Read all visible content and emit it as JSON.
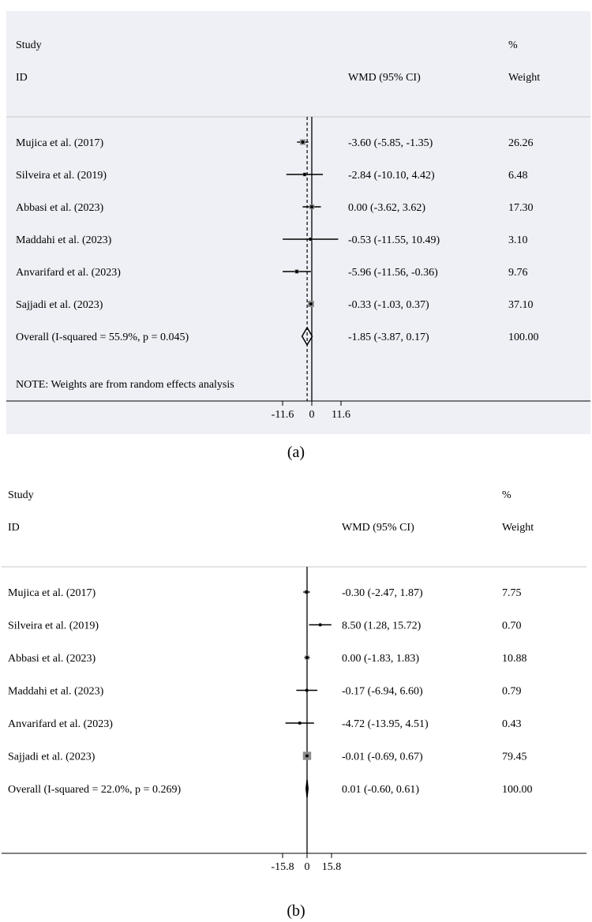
{
  "chart_data": [
    {
      "type": "forest",
      "panel": "a",
      "caption": "(a)",
      "header": {
        "study": "Study",
        "id": "ID",
        "effect": "WMD (95% CI)",
        "pct": "%",
        "weight": "Weight"
      },
      "studies": [
        {
          "label": "Mujica et al. (2017)",
          "est": -3.6,
          "lo": -5.85,
          "hi": -1.35,
          "ci_text": "-3.60 (-5.85, -1.35)",
          "weight": 26.26,
          "weight_text": "26.26"
        },
        {
          "label": "Silveira et al. (2019)",
          "est": -2.84,
          "lo": -10.1,
          "hi": 4.42,
          "ci_text": "-2.84 (-10.10, 4.42)",
          "weight": 6.48,
          "weight_text": "6.48"
        },
        {
          "label": "Abbasi et al. (2023)",
          "est": 0.0,
          "lo": -3.62,
          "hi": 3.62,
          "ci_text": "0.00 (-3.62, 3.62)",
          "weight": 17.3,
          "weight_text": "17.30"
        },
        {
          "label": "Maddahi et al.  (2023)",
          "est": -0.53,
          "lo": -11.55,
          "hi": 10.49,
          "ci_text": "-0.53 (-11.55, 10.49)",
          "weight": 3.1,
          "weight_text": "3.10"
        },
        {
          "label": "Anvarifard et al. (2023)",
          "est": -5.96,
          "lo": -11.56,
          "hi": -0.36,
          "ci_text": "-5.96 (-11.56, -0.36)",
          "weight": 9.76,
          "weight_text": "9.76"
        },
        {
          "label": "Sajjadi et al. (2023)",
          "est": -0.33,
          "lo": -1.03,
          "hi": 0.37,
          "ci_text": "-0.33 (-1.03, 0.37)",
          "weight": 37.1,
          "weight_text": "37.10"
        }
      ],
      "overall": {
        "label": "Overall  (I-squared = 55.9%, p = 0.045)",
        "est": -1.85,
        "lo": -3.87,
        "hi": 0.17,
        "ci_text": "-1.85 (-3.87, 0.17)",
        "weight_text": "100.00"
      },
      "note": "NOTE: Weights are from random effects analysis",
      "xticks": [
        -11.6,
        0,
        11.6
      ],
      "xtick_labels": [
        "-11.6",
        "0",
        "11.6"
      ],
      "xlim": [
        -11.6,
        11.6
      ]
    },
    {
      "type": "forest",
      "panel": "b",
      "caption": "(b)",
      "header": {
        "study": "Study",
        "id": "ID",
        "effect": "WMD (95% CI)",
        "pct": "%",
        "weight": "Weight"
      },
      "studies": [
        {
          "label": "Mujica et al. (2017)",
          "est": -0.3,
          "lo": -2.47,
          "hi": 1.87,
          "ci_text": "-0.30 (-2.47, 1.87)",
          "weight": 7.75,
          "weight_text": "7.75"
        },
        {
          "label": "Silveira et al. (2019)",
          "est": 8.5,
          "lo": 1.28,
          "hi": 15.72,
          "ci_text": "8.50 (1.28, 15.72)",
          "weight": 0.7,
          "weight_text": "0.70"
        },
        {
          "label": "Abbasi et al. (2023)",
          "est": 0.0,
          "lo": -1.83,
          "hi": 1.83,
          "ci_text": "0.00 (-1.83, 1.83)",
          "weight": 10.88,
          "weight_text": "10.88"
        },
        {
          "label": "Maddahi et al.  (2023)",
          "est": -0.17,
          "lo": -6.94,
          "hi": 6.6,
          "ci_text": "-0.17 (-6.94, 6.60)",
          "weight": 0.79,
          "weight_text": "0.79"
        },
        {
          "label": "Anvarifard et al. (2023)",
          "est": -4.72,
          "lo": -13.95,
          "hi": 4.51,
          "ci_text": "-4.72 (-13.95, 4.51)",
          "weight": 0.43,
          "weight_text": "0.43"
        },
        {
          "label": "Sajjadi et al. (2023)",
          "est": -0.01,
          "lo": -0.69,
          "hi": 0.67,
          "ci_text": "-0.01 (-0.69, 0.67)",
          "weight": 79.45,
          "weight_text": "79.45"
        }
      ],
      "overall": {
        "label": "Overall  (I-squared = 22.0%, p = 0.269)",
        "est": 0.01,
        "lo": -0.6,
        "hi": 0.61,
        "ci_text": "0.01 (-0.60, 0.61)",
        "weight_text": "100.00"
      },
      "xticks": [
        -15.8,
        0,
        15.8
      ],
      "xtick_labels": [
        "-15.8",
        "0",
        "15.8"
      ],
      "xlim": [
        -15.8,
        15.8
      ]
    }
  ]
}
